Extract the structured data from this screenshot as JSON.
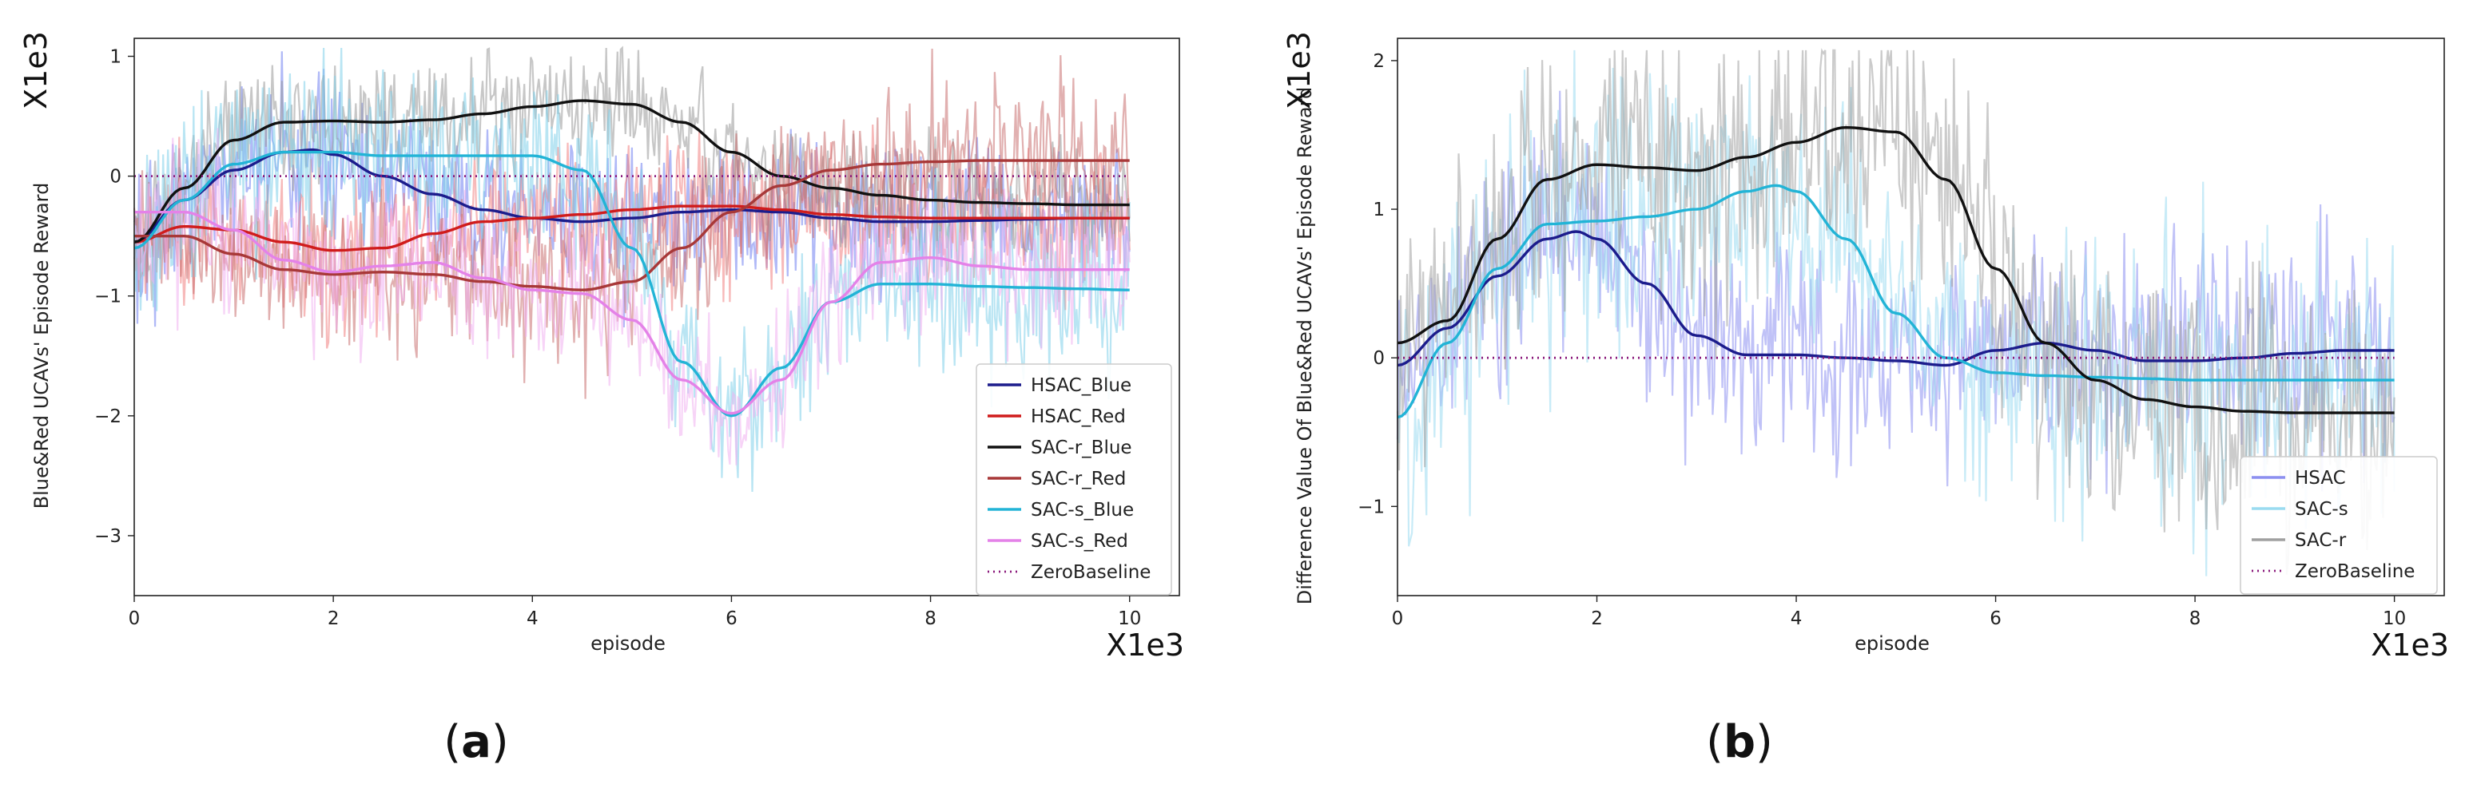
{
  "chart_data": [
    {
      "id": "a",
      "type": "line",
      "caption_letter": "a",
      "xlabel": "episode",
      "ylabel": "Blue&Red UCAVs' Episode Reward",
      "x_multiplier": "X1e3",
      "y_multiplier": "X1e3",
      "xlim": [
        0,
        10.5
      ],
      "ylim": [
        -3.5,
        1.15
      ],
      "xticks": [
        0,
        2,
        4,
        6,
        8,
        10
      ],
      "yticks": [
        1,
        0,
        -1,
        -2,
        -3
      ],
      "legend_position": "lower-right",
      "series": [
        {
          "name": "HSAC_Blue",
          "color": "#1c1c8c",
          "noise_color": "#6f7ff0",
          "noise_amp": 0.3,
          "x": [
            0,
            0.5,
            1,
            1.5,
            1.8,
            2,
            2.5,
            3,
            3.5,
            4,
            4.5,
            5,
            5.5,
            6,
            6.5,
            7,
            7.5,
            8,
            8.5,
            9,
            9.5,
            10
          ],
          "y": [
            -0.55,
            -0.2,
            0.05,
            0.2,
            0.22,
            0.18,
            0.0,
            -0.15,
            -0.28,
            -0.35,
            -0.38,
            -0.35,
            -0.3,
            -0.28,
            -0.3,
            -0.35,
            -0.38,
            -0.38,
            -0.37,
            -0.36,
            -0.35,
            -0.35
          ]
        },
        {
          "name": "HSAC_Red",
          "color": "#d01c1c",
          "noise_color": "#f08080",
          "noise_amp": 0.3,
          "x": [
            0,
            0.5,
            1,
            1.5,
            2,
            2.5,
            3,
            3.5,
            4,
            4.5,
            5,
            5.5,
            6,
            6.5,
            7,
            7.5,
            8,
            8.5,
            9,
            9.5,
            10
          ],
          "y": [
            -0.55,
            -0.42,
            -0.45,
            -0.55,
            -0.62,
            -0.6,
            -0.48,
            -0.38,
            -0.35,
            -0.32,
            -0.28,
            -0.25,
            -0.25,
            -0.28,
            -0.32,
            -0.34,
            -0.35,
            -0.35,
            -0.35,
            -0.35,
            -0.35
          ]
        },
        {
          "name": "SAC-r_Blue",
          "color": "#111111",
          "noise_color": "#999999",
          "noise_amp": 0.25,
          "x": [
            0,
            0.5,
            1,
            1.5,
            2,
            2.5,
            3,
            3.5,
            4,
            4.5,
            5,
            5.5,
            6,
            6.5,
            7,
            7.5,
            8,
            8.5,
            9,
            9.5,
            10
          ],
          "y": [
            -0.55,
            -0.1,
            0.3,
            0.45,
            0.46,
            0.45,
            0.47,
            0.52,
            0.58,
            0.63,
            0.6,
            0.45,
            0.2,
            0.0,
            -0.1,
            -0.16,
            -0.2,
            -0.22,
            -0.23,
            -0.24,
            -0.24
          ]
        },
        {
          "name": "SAC-r_Red",
          "color": "#a83838",
          "noise_color": "#c87070",
          "noise_amp": 0.3,
          "x": [
            0,
            0.5,
            1,
            1.5,
            2,
            2.5,
            3,
            3.5,
            4,
            4.5,
            5,
            5.5,
            6,
            6.5,
            7,
            7.5,
            8,
            8.5,
            9,
            9.5,
            10
          ],
          "y": [
            -0.5,
            -0.5,
            -0.65,
            -0.78,
            -0.82,
            -0.8,
            -0.82,
            -0.88,
            -0.92,
            -0.95,
            -0.88,
            -0.6,
            -0.3,
            -0.08,
            0.05,
            0.1,
            0.12,
            0.13,
            0.13,
            0.13,
            0.13
          ]
        },
        {
          "name": "SAC-s_Blue",
          "color": "#22b4d6",
          "noise_color": "#7fd0ea",
          "noise_amp": 0.35,
          "x": [
            0,
            0.5,
            1,
            1.5,
            2,
            2.5,
            3,
            3.5,
            4,
            4.5,
            5,
            5.5,
            6,
            6.5,
            7,
            7.5,
            8,
            8.5,
            9,
            9.5,
            10
          ],
          "y": [
            -0.6,
            -0.2,
            0.1,
            0.2,
            0.2,
            0.17,
            0.17,
            0.17,
            0.17,
            0.05,
            -0.6,
            -1.55,
            -2.0,
            -1.6,
            -1.05,
            -0.9,
            -0.9,
            -0.92,
            -0.93,
            -0.94,
            -0.95
          ]
        },
        {
          "name": "SAC-s_Red",
          "color": "#e482e8",
          "noise_color": "#f0b0f0",
          "noise_amp": 0.3,
          "x": [
            0,
            0.5,
            1,
            1.5,
            2,
            2.5,
            3,
            3.5,
            4,
            4.5,
            5,
            5.5,
            6,
            6.5,
            7,
            7.5,
            8,
            8.5,
            9,
            9.5,
            10
          ],
          "y": [
            -0.3,
            -0.3,
            -0.45,
            -0.7,
            -0.8,
            -0.75,
            -0.72,
            -0.85,
            -0.95,
            -0.98,
            -1.2,
            -1.7,
            -1.98,
            -1.7,
            -1.05,
            -0.72,
            -0.68,
            -0.75,
            -0.78,
            -0.78,
            -0.78
          ]
        },
        {
          "name": "ZeroBaseline",
          "color": "#8b1a7c",
          "dotted": true,
          "x": [
            0,
            10
          ],
          "y": [
            0,
            0
          ]
        }
      ]
    },
    {
      "id": "b",
      "type": "line",
      "caption_letter": "b",
      "xlabel": "episode",
      "ylabel": "Difference Value Of Blue&Red UCAVs' Episode Reward",
      "x_multiplier": "X1e3",
      "y_multiplier": "X1e3",
      "xlim": [
        0,
        10.5
      ],
      "ylim": [
        -1.6,
        2.15
      ],
      "xticks": [
        0,
        2,
        4,
        6,
        8,
        10
      ],
      "yticks": [
        2,
        1,
        0,
        -1
      ],
      "legend_position": "lower-right",
      "series": [
        {
          "name": "HSAC",
          "color": "#1c1c8c",
          "noise_color": "#8c8ff0",
          "noise_amp": 0.35,
          "x": [
            0,
            0.5,
            1,
            1.5,
            1.8,
            2,
            2.5,
            3,
            3.5,
            4,
            4.5,
            5,
            5.5,
            6,
            6.5,
            7,
            7.5,
            8,
            8.5,
            9,
            9.5,
            10
          ],
          "y": [
            -0.05,
            0.2,
            0.55,
            0.8,
            0.85,
            0.8,
            0.5,
            0.15,
            0.02,
            0.02,
            0.0,
            -0.02,
            -0.05,
            0.05,
            0.1,
            0.05,
            -0.02,
            -0.02,
            0.0,
            0.03,
            0.05,
            0.05
          ]
        },
        {
          "name": "SAC-s",
          "color": "#22b4d6",
          "noise_color": "#9adbf0",
          "noise_amp": 0.45,
          "x": [
            0,
            0.5,
            1,
            1.5,
            2,
            2.5,
            3,
            3.5,
            3.8,
            4,
            4.5,
            5,
            5.5,
            6,
            6.5,
            7,
            7.5,
            8,
            8.5,
            9,
            9.5,
            10
          ],
          "y": [
            -0.4,
            0.1,
            0.6,
            0.9,
            0.92,
            0.95,
            1.0,
            1.12,
            1.16,
            1.12,
            0.8,
            0.3,
            0.0,
            -0.1,
            -0.12,
            -0.13,
            -0.14,
            -0.15,
            -0.15,
            -0.15,
            -0.15,
            -0.15
          ]
        },
        {
          "name": "SAC-r",
          "color": "#111111",
          "noise_color": "#a0a0a0",
          "noise_amp": 0.45,
          "x": [
            0,
            0.5,
            1,
            1.5,
            2,
            2.5,
            3,
            3.5,
            4,
            4.5,
            5,
            5.5,
            6,
            6.5,
            7,
            7.5,
            8,
            8.5,
            9,
            9.5,
            10
          ],
          "y": [
            0.1,
            0.25,
            0.8,
            1.2,
            1.3,
            1.28,
            1.26,
            1.35,
            1.45,
            1.55,
            1.52,
            1.2,
            0.6,
            0.1,
            -0.15,
            -0.28,
            -0.33,
            -0.36,
            -0.37,
            -0.37,
            -0.37
          ]
        },
        {
          "name": "ZeroBaseline",
          "color": "#8b1a7c",
          "dotted": true,
          "x": [
            0,
            10
          ],
          "y": [
            0,
            0
          ]
        }
      ]
    }
  ]
}
